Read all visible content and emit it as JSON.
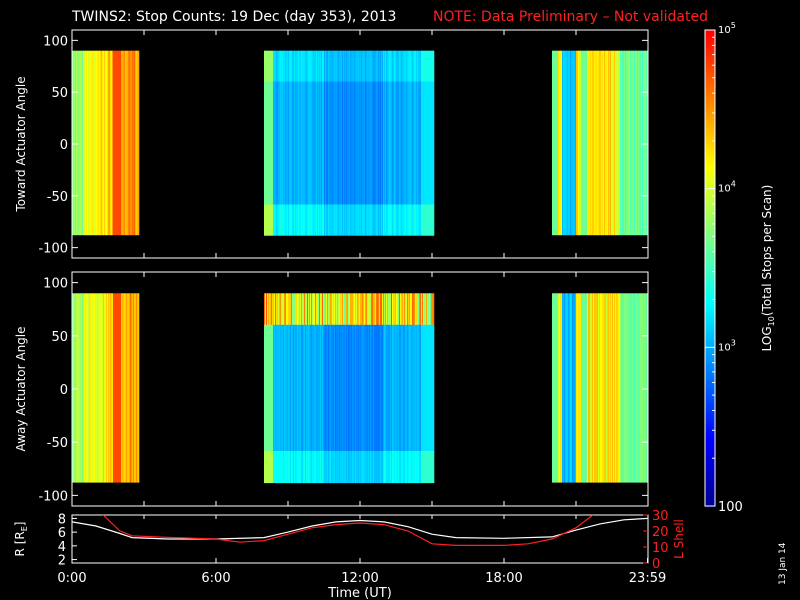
{
  "title": "TWINS2: Stop Counts: 19 Dec (day 353), 2013",
  "note": "NOTE: Data Preliminary – Not validated",
  "note_color": "#ff2020",
  "stamp": "13 Jan 14",
  "colorbar": {
    "label_log": "LOG",
    "label_sub": "10",
    "label_rest": "(Total Stops per Scan)",
    "ticks": [
      {
        "value": 100,
        "label": "100"
      },
      {
        "value": 1000,
        "label": "10",
        "sup": "3"
      },
      {
        "value": 10000,
        "label": "10",
        "sup": "4"
      },
      {
        "value": 100000,
        "label": "10",
        "sup": "5"
      }
    ],
    "range": [
      100,
      100000
    ],
    "scale": "log",
    "colors": [
      "#000090",
      "#0000ff",
      "#0080ff",
      "#00ffff",
      "#80ff80",
      "#ffff00",
      "#ff8000",
      "#ff0000"
    ]
  },
  "chart_data": [
    {
      "type": "heatmap",
      "name": "toward",
      "ylabel": "Toward Actuator Angle",
      "ylim": [
        -110,
        110
      ],
      "yticks": [
        100,
        50,
        0,
        -50,
        -100
      ],
      "xlim": [
        0,
        24
      ],
      "data_ylim": [
        -88,
        90
      ],
      "segments": [
        {
          "t0": 0.0,
          "t1": 2.8,
          "scheme": "hot"
        },
        {
          "t0": 8.0,
          "t1": 15.1,
          "scheme": "cool"
        },
        {
          "t0": 20.0,
          "t1": 24.0,
          "scheme": "mixed"
        }
      ]
    },
    {
      "type": "heatmap",
      "name": "away",
      "ylabel": "Away Actuator Angle",
      "ylim": [
        -110,
        110
      ],
      "yticks": [
        100,
        50,
        0,
        -50,
        -100
      ],
      "xlim": [
        0,
        24
      ],
      "data_ylim": [
        -88,
        90
      ],
      "segments": [
        {
          "t0": 0.0,
          "t1": 2.8,
          "scheme": "hot"
        },
        {
          "t0": 8.0,
          "t1": 15.1,
          "scheme": "cool"
        },
        {
          "t0": 20.0,
          "t1": 24.0,
          "scheme": "mixed"
        }
      ]
    },
    {
      "type": "line",
      "name": "orbit",
      "ylabel_left": "R [R",
      "ylabel_left_sub": "E",
      "ylabel_left_end": "]",
      "ylabel_right": "L Shell",
      "ylim_left": [
        1.5,
        8.5
      ],
      "yticks_left": [
        8,
        6,
        4,
        2
      ],
      "ylim_right": [
        0,
        30
      ],
      "yticks_right": [
        30,
        20,
        10,
        0
      ],
      "xlabel": "Time (UT)",
      "xticks": [
        {
          "t": 0,
          "label": "0:00"
        },
        {
          "t": 6,
          "label": "6:00"
        },
        {
          "t": 12,
          "label": "12:00"
        },
        {
          "t": 18,
          "label": "18:00"
        },
        {
          "t": 23.98,
          "label": "23:59"
        }
      ],
      "series": [
        {
          "axis": "left",
          "color": "#ffffff",
          "x": [
            0,
            1,
            2,
            2.5,
            4,
            6,
            8,
            9,
            10,
            11,
            12,
            13,
            14,
            15,
            16,
            18,
            20,
            21,
            22,
            23,
            24
          ],
          "y": [
            7.5,
            6.9,
            5.8,
            5.2,
            5.0,
            5.0,
            5.2,
            6.0,
            6.9,
            7.5,
            7.7,
            7.5,
            6.8,
            5.7,
            5.2,
            5.1,
            5.3,
            6.3,
            7.2,
            7.8,
            8.0
          ]
        },
        {
          "axis": "right",
          "color": "#ff2020",
          "x": [
            1.3,
            2.0,
            2.5,
            4,
            6,
            7,
            8,
            9,
            10,
            11,
            12,
            13,
            14,
            15,
            16,
            18,
            19,
            20,
            21,
            21.7
          ],
          "y": [
            30,
            20,
            17,
            16,
            15,
            13,
            14,
            18,
            22,
            24,
            25,
            24,
            20,
            12,
            11,
            11,
            12,
            15,
            22,
            30
          ]
        }
      ]
    }
  ]
}
